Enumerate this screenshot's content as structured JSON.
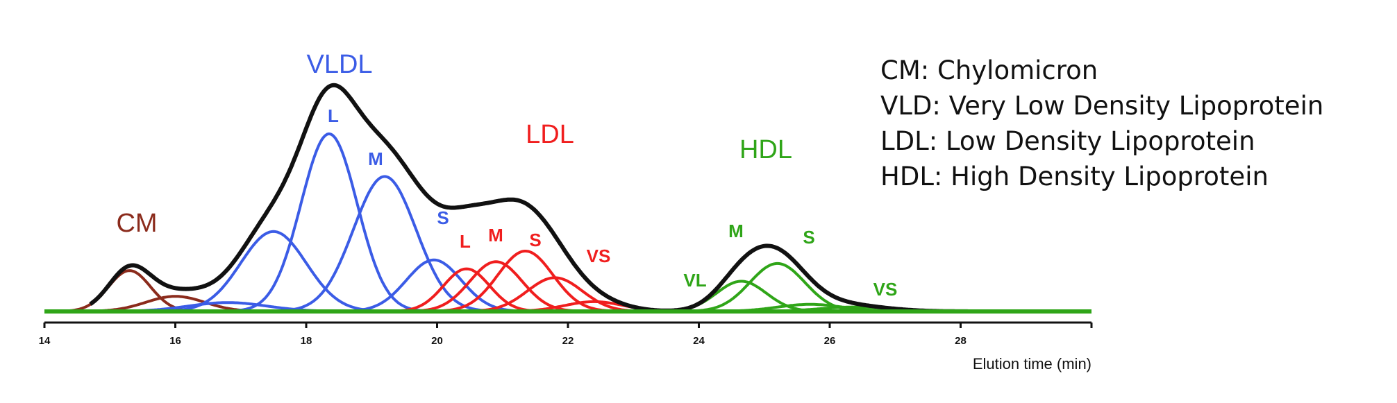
{
  "chart_data": {
    "type": "line",
    "xlabel": "Elution time (min)",
    "xlim": [
      14,
      30
    ],
    "x_ticks": [
      14,
      16,
      18,
      20,
      22,
      24,
      26,
      28
    ],
    "ylim": [
      0,
      1
    ],
    "grid": false,
    "group_labels": [
      {
        "id": "cm",
        "text": "CM",
        "color": "#8b2b1c"
      },
      {
        "id": "vldl",
        "text": "VLDL",
        "color": "#3b5ce6"
      },
      {
        "id": "ldl",
        "text": "LDL",
        "color": "#f01e1e"
      },
      {
        "id": "hdl",
        "text": "HDL",
        "color": "#2fa518"
      }
    ],
    "series": [
      {
        "group": "cm",
        "color": "#8b2b1c",
        "peaks": [
          {
            "label": "",
            "mu": 15.3,
            "sigma": 0.32,
            "amp": 0.23
          }
        ]
      },
      {
        "group": "cm",
        "color": "#8b2b1c",
        "peaks": [
          {
            "label": "",
            "mu": 16.0,
            "sigma": 0.45,
            "amp": 0.085
          }
        ]
      },
      {
        "group": "vldl",
        "color": "#3b5ce6",
        "peaks": [
          {
            "label": "",
            "mu": 16.8,
            "sigma": 0.6,
            "amp": 0.05
          }
        ]
      },
      {
        "group": "vldl",
        "color": "#3b5ce6",
        "peaks": [
          {
            "label": "",
            "mu": 17.5,
            "sigma": 0.5,
            "amp": 0.45
          }
        ]
      },
      {
        "group": "vldl",
        "color": "#3b5ce6",
        "peaks": [
          {
            "label": "L",
            "mu": 18.35,
            "sigma": 0.43,
            "amp": 1.0
          }
        ]
      },
      {
        "group": "vldl",
        "color": "#3b5ce6",
        "peaks": [
          {
            "label": "M",
            "mu": 19.2,
            "sigma": 0.48,
            "amp": 0.76
          }
        ]
      },
      {
        "group": "vldl",
        "color": "#3b5ce6",
        "peaks": [
          {
            "label": "S",
            "mu": 19.95,
            "sigma": 0.42,
            "amp": 0.29
          }
        ]
      },
      {
        "group": "ldl",
        "color": "#f01e1e",
        "peaks": [
          {
            "label": "L",
            "mu": 20.45,
            "sigma": 0.35,
            "amp": 0.24
          }
        ]
      },
      {
        "group": "ldl",
        "color": "#f01e1e",
        "peaks": [
          {
            "label": "M",
            "mu": 20.9,
            "sigma": 0.4,
            "amp": 0.28
          }
        ]
      },
      {
        "group": "ldl",
        "color": "#f01e1e",
        "peaks": [
          {
            "label": "S",
            "mu": 21.35,
            "sigma": 0.42,
            "amp": 0.34
          }
        ]
      },
      {
        "group": "ldl",
        "color": "#f01e1e",
        "peaks": [
          {
            "label": "VS",
            "mu": 21.8,
            "sigma": 0.42,
            "amp": 0.19
          }
        ]
      },
      {
        "group": "ldl",
        "color": "#f01e1e",
        "peaks": [
          {
            "label": "",
            "mu": 22.4,
            "sigma": 0.45,
            "amp": 0.055
          }
        ]
      },
      {
        "group": "hdl",
        "color": "#2fa518",
        "peaks": [
          {
            "label": "VL",
            "mu": 24.65,
            "sigma": 0.38,
            "amp": 0.17
          }
        ]
      },
      {
        "group": "hdl",
        "color": "#2fa518",
        "peaks": [
          {
            "label": "M",
            "mu": 25.2,
            "sigma": 0.42,
            "amp": 0.27
          }
        ]
      },
      {
        "group": "hdl",
        "color": "#2fa518",
        "peaks": [
          {
            "label": "S",
            "mu": 25.7,
            "sigma": 0.5,
            "amp": 0.04
          }
        ]
      },
      {
        "group": "hdl",
        "color": "#2fa518",
        "peaks": [
          {
            "label": "VS",
            "mu": 26.4,
            "sigma": 0.55,
            "amp": 0.025
          }
        ]
      }
    ],
    "total_color": "#111111",
    "baseline_color": "#2fa518"
  },
  "legend": {
    "items": [
      "CM: Chylomicron",
      "VLD: Very Low Density Lipoprotein",
      "LDL: Low Density Lipoprotein",
      "HDL: High Density Lipoprotein"
    ]
  }
}
